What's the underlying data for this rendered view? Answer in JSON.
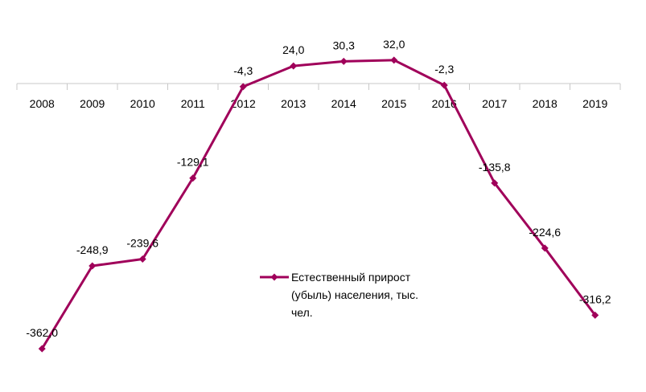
{
  "chart_data": {
    "type": "line",
    "categories": [
      "2008",
      "2009",
      "2010",
      "2011",
      "2012",
      "2013",
      "2014",
      "2015",
      "2016",
      "2017",
      "2018",
      "2019"
    ],
    "series": [
      {
        "name": "Естественный прирост (убыль) населения, тыс. чел.",
        "values": [
          -362.0,
          -248.9,
          -239.6,
          -129.1,
          -4.3,
          24.0,
          30.3,
          32.0,
          -2.3,
          -135.8,
          -224.6,
          -316.2
        ],
        "data_labels": [
          "-362,0",
          "-248,9",
          "-239,6",
          "-129,1",
          "-4,3",
          "24,0",
          "30,3",
          "32,0",
          "-2,3",
          "-135,8",
          "-224,6",
          "-316,2"
        ],
        "color": "#A0005A",
        "marker": "diamond"
      }
    ],
    "legend_lines": [
      "Естественный прирост",
      "(убыль) населения, тыс.",
      "чел."
    ],
    "legend_placement": "center-right",
    "xaxis_position": "at-zero",
    "ylim": [
      -400,
      40
    ],
    "grid": false,
    "yaxis_visible": false
  }
}
